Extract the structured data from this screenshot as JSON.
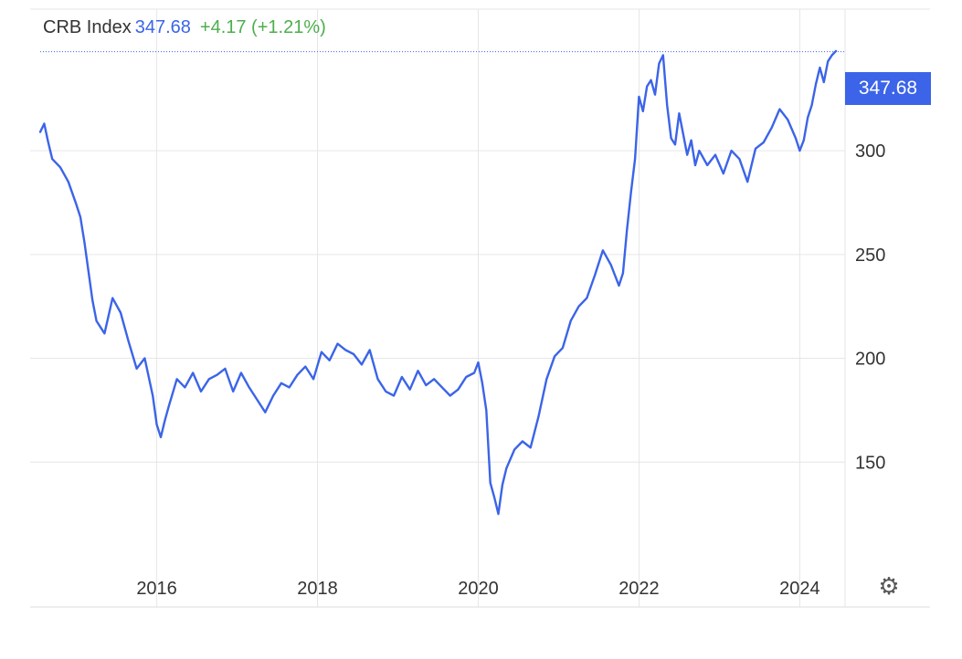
{
  "header": {
    "name": "CRB Index",
    "last": "347.68",
    "change": "+4.17 (+1.21%)"
  },
  "price_tag": "347.68",
  "colors": {
    "line": "#3b64e8",
    "positive": "#4cae4c",
    "grid": "#e6e6e6",
    "last_price_line": "#3b64e8"
  },
  "icons": {
    "settings": "gear-icon"
  },
  "chart_data": {
    "type": "line",
    "title": "CRB Index",
    "xlabel": "",
    "ylabel": "",
    "xlim": [
      2014.55,
      2024.45
    ],
    "ylim": [
      100,
      355
    ],
    "x_ticks": [
      2016,
      2018,
      2020,
      2022,
      2024
    ],
    "x_tick_labels": [
      "2016",
      "2018",
      "2020",
      "2022",
      "2024"
    ],
    "y_ticks": [
      150,
      200,
      250,
      300
    ],
    "y_tick_labels": [
      "150",
      "200",
      "250",
      "300"
    ],
    "grid": true,
    "last_value": 347.68,
    "y_axis_side": "right",
    "series": [
      {
        "x": [
          2014.55,
          2014.6,
          2014.65,
          2014.7,
          2014.8,
          2014.9,
          2015.0,
          2015.05,
          2015.1,
          2015.2,
          2015.25,
          2015.35,
          2015.45,
          2015.55,
          2015.65,
          2015.75,
          2015.85,
          2015.95,
          2016.0,
          2016.05,
          2016.1,
          2016.15,
          2016.25,
          2016.35,
          2016.45,
          2016.55,
          2016.65,
          2016.75,
          2016.85,
          2016.95,
          2017.05,
          2017.15,
          2017.25,
          2017.35,
          2017.45,
          2017.55,
          2017.65,
          2017.75,
          2017.85,
          2017.95,
          2018.05,
          2018.15,
          2018.25,
          2018.35,
          2018.45,
          2018.55,
          2018.65,
          2018.75,
          2018.85,
          2018.95,
          2019.05,
          2019.15,
          2019.25,
          2019.35,
          2019.45,
          2019.55,
          2019.65,
          2019.75,
          2019.85,
          2019.95,
          2020.0,
          2020.05,
          2020.1,
          2020.15,
          2020.2,
          2020.25,
          2020.3,
          2020.35,
          2020.45,
          2020.55,
          2020.65,
          2020.75,
          2020.85,
          2020.95,
          2021.05,
          2021.15,
          2021.25,
          2021.35,
          2021.45,
          2021.55,
          2021.65,
          2021.75,
          2021.8,
          2021.85,
          2021.9,
          2021.95,
          2022.0,
          2022.05,
          2022.1,
          2022.15,
          2022.2,
          2022.25,
          2022.3,
          2022.35,
          2022.4,
          2022.45,
          2022.5,
          2022.55,
          2022.6,
          2022.65,
          2022.7,
          2022.75,
          2022.85,
          2022.95,
          2023.05,
          2023.15,
          2023.25,
          2023.35,
          2023.45,
          2023.55,
          2023.65,
          2023.75,
          2023.85,
          2023.95,
          2024.0,
          2024.05,
          2024.1,
          2024.15,
          2024.2,
          2024.25,
          2024.3,
          2024.35,
          2024.4,
          2024.45
        ],
        "values": [
          309,
          313,
          304,
          296,
          292,
          285,
          274,
          268,
          256,
          228,
          218,
          212,
          229,
          222,
          208,
          195,
          200,
          182,
          168,
          162,
          170,
          177,
          190,
          186,
          193,
          184,
          190,
          192,
          195,
          184,
          193,
          186,
          180,
          174,
          182,
          188,
          186,
          192,
          196,
          190,
          203,
          199,
          207,
          204,
          202,
          197,
          204,
          190,
          184,
          182,
          191,
          185,
          194,
          187,
          190,
          186,
          182,
          185,
          191,
          193,
          198,
          188,
          175,
          140,
          133,
          125,
          139,
          147,
          156,
          160,
          157,
          172,
          190,
          201,
          205,
          218,
          225,
          229,
          240,
          252,
          245,
          235,
          241,
          262,
          280,
          296,
          326,
          319,
          331,
          334,
          327,
          342,
          346,
          322,
          306,
          303,
          318,
          308,
          298,
          305,
          293,
          300,
          293,
          298,
          289,
          300,
          296,
          285,
          301,
          304,
          311,
          320,
          315,
          306,
          300,
          305,
          316,
          322,
          332,
          340,
          333,
          343,
          346,
          348
        ]
      }
    ]
  }
}
